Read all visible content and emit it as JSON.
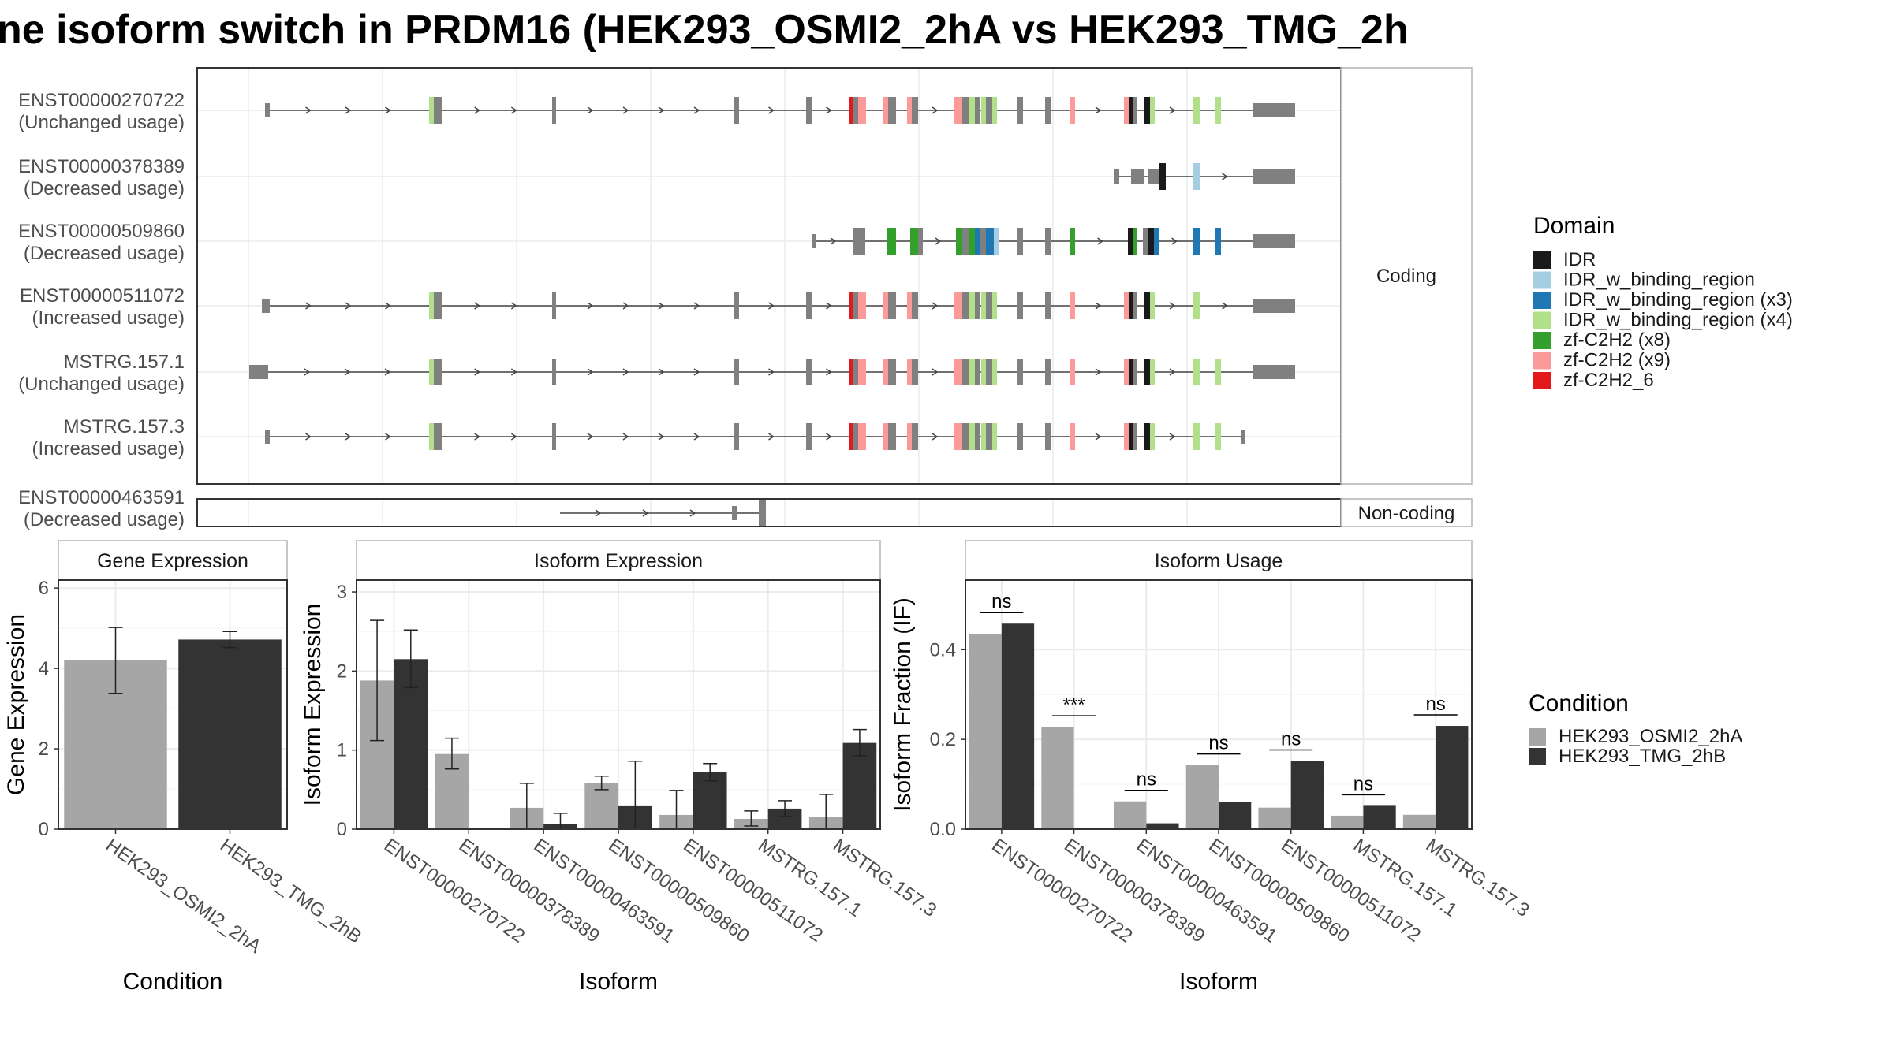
{
  "colors": {
    "exon": "#808080",
    "panel_border": "#333333",
    "strip_border": "#b3b3b3",
    "strip_fill": "#ffffff",
    "grid": "#ebebeb",
    "bar_a": "#a6a6a6",
    "bar_b": "#333333",
    "intron": "#444444"
  },
  "title": "ne isoform switch in PRDM16 (HEK293_OSMI2_2hA vs HEK293_TMG_2h",
  "structure": {
    "coding_label": "Coding",
    "noncoding_label": "Non-coding",
    "coding_transcripts": [
      {
        "name": "ENST00000270722",
        "usage": "(Unchanged usage)"
      },
      {
        "name": "ENST00000378389",
        "usage": "(Decreased usage)"
      },
      {
        "name": "ENST00000509860",
        "usage": "(Decreased usage)"
      },
      {
        "name": "ENST00000511072",
        "usage": "(Increased usage)"
      },
      {
        "name": "MSTRG.157.1",
        "usage": "(Unchanged usage)"
      },
      {
        "name": "MSTRG.157.3",
        "usage": "(Increased usage)"
      }
    ],
    "noncoding_transcripts": [
      {
        "name": "ENST00000463591",
        "usage": "(Decreased usage)"
      }
    ]
  },
  "legend_domain": {
    "title": "Domain",
    "items": [
      {
        "label": "IDR",
        "color": "#1a1a1a"
      },
      {
        "label": "IDR_w_binding_region",
        "color": "#a6cee3"
      },
      {
        "label": "IDR_w_binding_region (x3)",
        "color": "#1f78b4"
      },
      {
        "label": "IDR_w_binding_region (x4)",
        "color": "#b2df8a"
      },
      {
        "label": "zf-C2H2 (x8)",
        "color": "#33a02c"
      },
      {
        "label": "zf-C2H2 (x9)",
        "color": "#fb9a99"
      },
      {
        "label": "zf-C2H2_6",
        "color": "#e31a1c"
      }
    ]
  },
  "legend_condition": {
    "title": "Condition",
    "items": [
      {
        "label": "HEK293_OSMI2_2hA",
        "color": "#a6a6a6"
      },
      {
        "label": "HEK293_TMG_2hB",
        "color": "#333333"
      }
    ]
  },
  "chart_data": [
    {
      "type": "bar",
      "panel": "Gene Expression",
      "categories": [
        "HEK293_OSMI2_2hA",
        "HEK293_TMG_2hB"
      ],
      "values": [
        4.2,
        4.72
      ],
      "error_low": [
        3.38,
        4.52
      ],
      "error_high": [
        5.02,
        4.92
      ],
      "ylabel": "Gene Expression",
      "xlabel": "Condition",
      "ylim": [
        0,
        6.2
      ],
      "yticks": [
        0,
        2,
        4,
        6
      ],
      "grid": true
    },
    {
      "type": "bar",
      "panel": "Isoform Expression",
      "categories": [
        "ENST00000270722",
        "ENST00000378389",
        "ENST00000463591",
        "ENST00000509860",
        "ENST00000511072",
        "MSTRG.157.1",
        "MSTRG.157.3"
      ],
      "series": [
        {
          "name": "HEK293_OSMI2_2hA",
          "values": [
            1.88,
            0.95,
            0.27,
            0.58,
            0.18,
            0.13,
            0.15
          ],
          "error_low": [
            1.12,
            0.76,
            0.0,
            0.5,
            0.0,
            0.04,
            0.0
          ],
          "error_high": [
            2.64,
            1.15,
            0.58,
            0.67,
            0.49,
            0.23,
            0.44
          ]
        },
        {
          "name": "HEK293_TMG_2hB",
          "values": [
            2.15,
            0.0,
            0.06,
            0.29,
            0.72,
            0.26,
            1.09
          ],
          "error_low": [
            1.79,
            0.0,
            0.0,
            0.0,
            0.61,
            0.16,
            0.93
          ],
          "error_high": [
            2.52,
            0.0,
            0.2,
            0.86,
            0.83,
            0.36,
            1.26
          ]
        }
      ],
      "ylabel": "Isoform Expression",
      "xlabel": "Isoform",
      "ylim": [
        0,
        3.15
      ],
      "yticks": [
        0,
        1,
        2,
        3
      ],
      "grid": true
    },
    {
      "type": "bar",
      "panel": "Isoform Usage",
      "categories": [
        "ENST00000270722",
        "ENST00000378389",
        "ENST00000463591",
        "ENST00000509860",
        "ENST00000511072",
        "MSTRG.157.1",
        "MSTRG.157.3"
      ],
      "series": [
        {
          "name": "HEK293_OSMI2_2hA",
          "values": [
            0.435,
            0.228,
            0.062,
            0.143,
            0.048,
            0.03,
            0.032
          ]
        },
        {
          "name": "HEK293_TMG_2hB",
          "values": [
            0.458,
            0.0,
            0.013,
            0.06,
            0.152,
            0.052,
            0.23
          ]
        }
      ],
      "significance": [
        "ns",
        "***",
        "ns",
        "ns",
        "ns",
        "ns",
        "ns"
      ],
      "ylabel": "Isoform Fraction (IF)",
      "xlabel": "Isoform",
      "ylim": [
        0,
        0.555
      ],
      "yticks": [
        0.0,
        0.2,
        0.4
      ],
      "ytick_labels": [
        "0.0",
        "0.2",
        "0.4"
      ],
      "grid": true
    }
  ]
}
